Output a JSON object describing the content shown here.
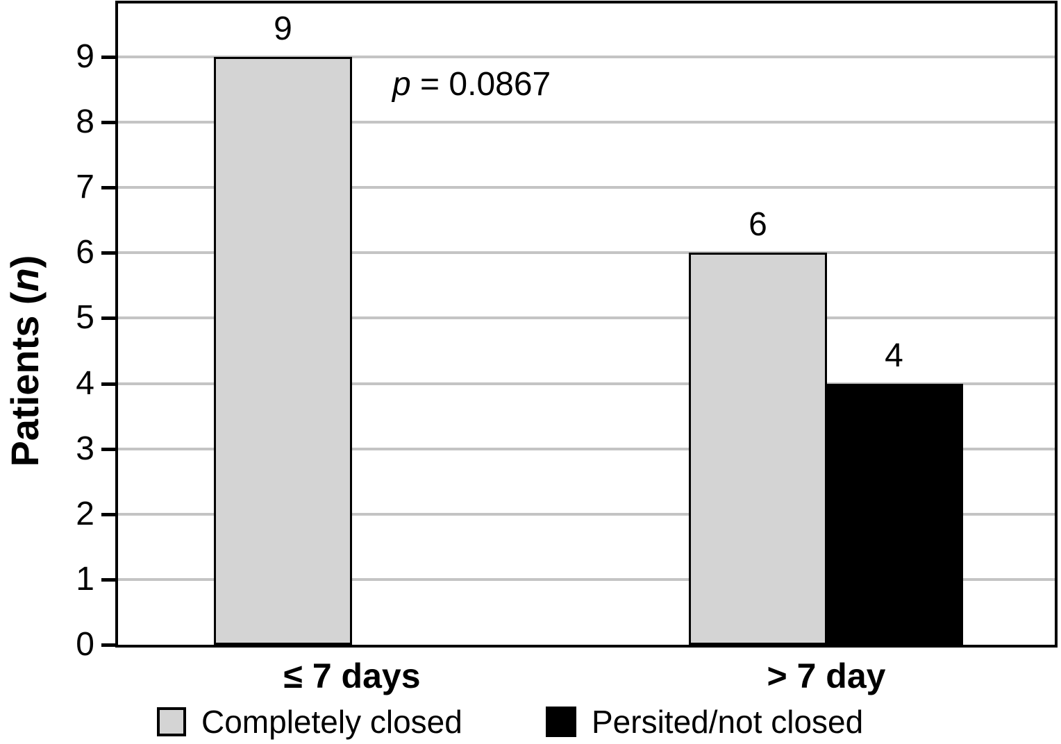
{
  "figure": {
    "background": "#ffffff"
  },
  "chart_data": {
    "type": "bar",
    "title": "",
    "xlabel": "",
    "ylabel": "Patients (n)",
    "ylabel_parts": {
      "prefix": "Patients (",
      "italic": "n",
      "suffix": ")"
    },
    "ylim": [
      0,
      9
    ],
    "yticks": [
      0,
      1,
      2,
      3,
      4,
      5,
      6,
      7,
      8,
      9
    ],
    "grid": true,
    "legend_position": "bottom",
    "categories": [
      "≤ 7 days",
      "> 7 day"
    ],
    "series": [
      {
        "name": "Completely closed",
        "color": "#d4d4d4",
        "values": [
          9,
          6
        ]
      },
      {
        "name": "Persited/not closed",
        "color": "#000000",
        "values": [
          0,
          4
        ]
      }
    ],
    "bar_value_labels": [
      "9",
      "6",
      "4"
    ],
    "annotation": {
      "italic": "p",
      "rest": " = 0.0867",
      "full": "p = 0.0867"
    },
    "colors": {
      "gridline": "#c4c4c4",
      "axis": "#000000",
      "bar_outline": "#000000",
      "gray_series": "#d4d4d4",
      "black_series": "#000000"
    }
  }
}
